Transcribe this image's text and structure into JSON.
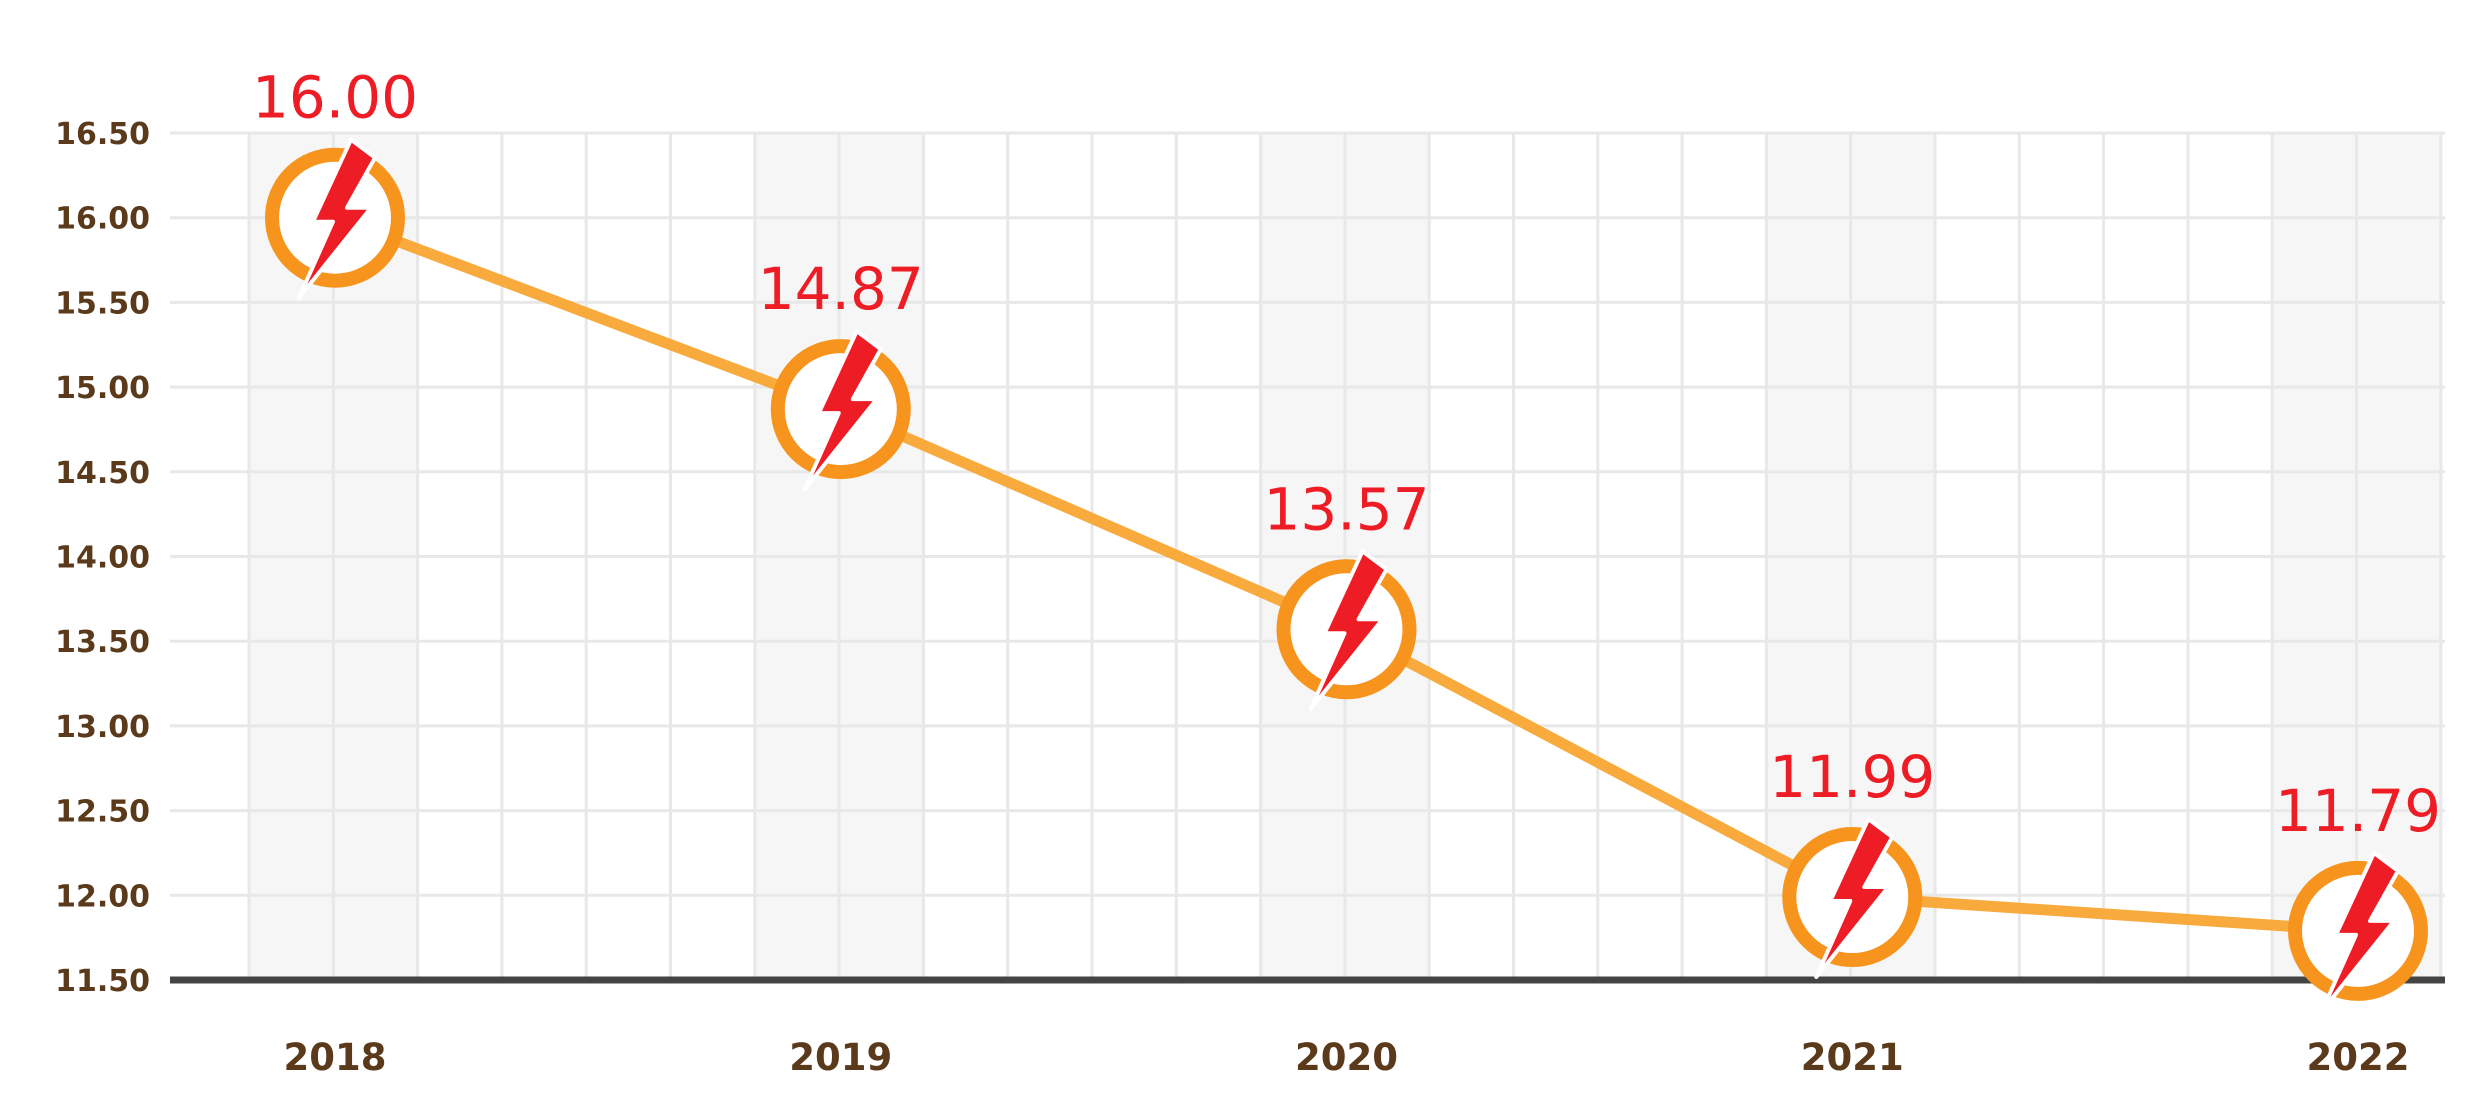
{
  "chart_data": {
    "type": "line",
    "title": "",
    "xlabel": "",
    "ylabel": "",
    "categories": [
      "2018",
      "2019",
      "2020",
      "2021",
      "2022"
    ],
    "series": [
      {
        "values": [
          16.0,
          14.87,
          13.57,
          11.99,
          11.79
        ],
        "labels": [
          "16.00",
          "14.87",
          "13.57",
          "11.99",
          "11.79"
        ]
      }
    ],
    "marker_icon": "lightning-bolt-icon",
    "ylim": [
      11.5,
      16.5
    ],
    "yticks": [
      "11.50",
      "12.00",
      "12.50",
      "13.00",
      "13.50",
      "14.00",
      "14.50",
      "15.00",
      "15.50",
      "16.00",
      "16.50"
    ],
    "grid": true,
    "legend": "none",
    "colors": {
      "line": "#f9aa3c",
      "marker_ring": "#f7941d",
      "bolt": "#ee1c25",
      "data_label": "#ee1c25",
      "tick_label": "#5a3a1a",
      "grid": "#e8e8e8",
      "band": "#f5f6f5",
      "baseline": "#444444"
    }
  }
}
